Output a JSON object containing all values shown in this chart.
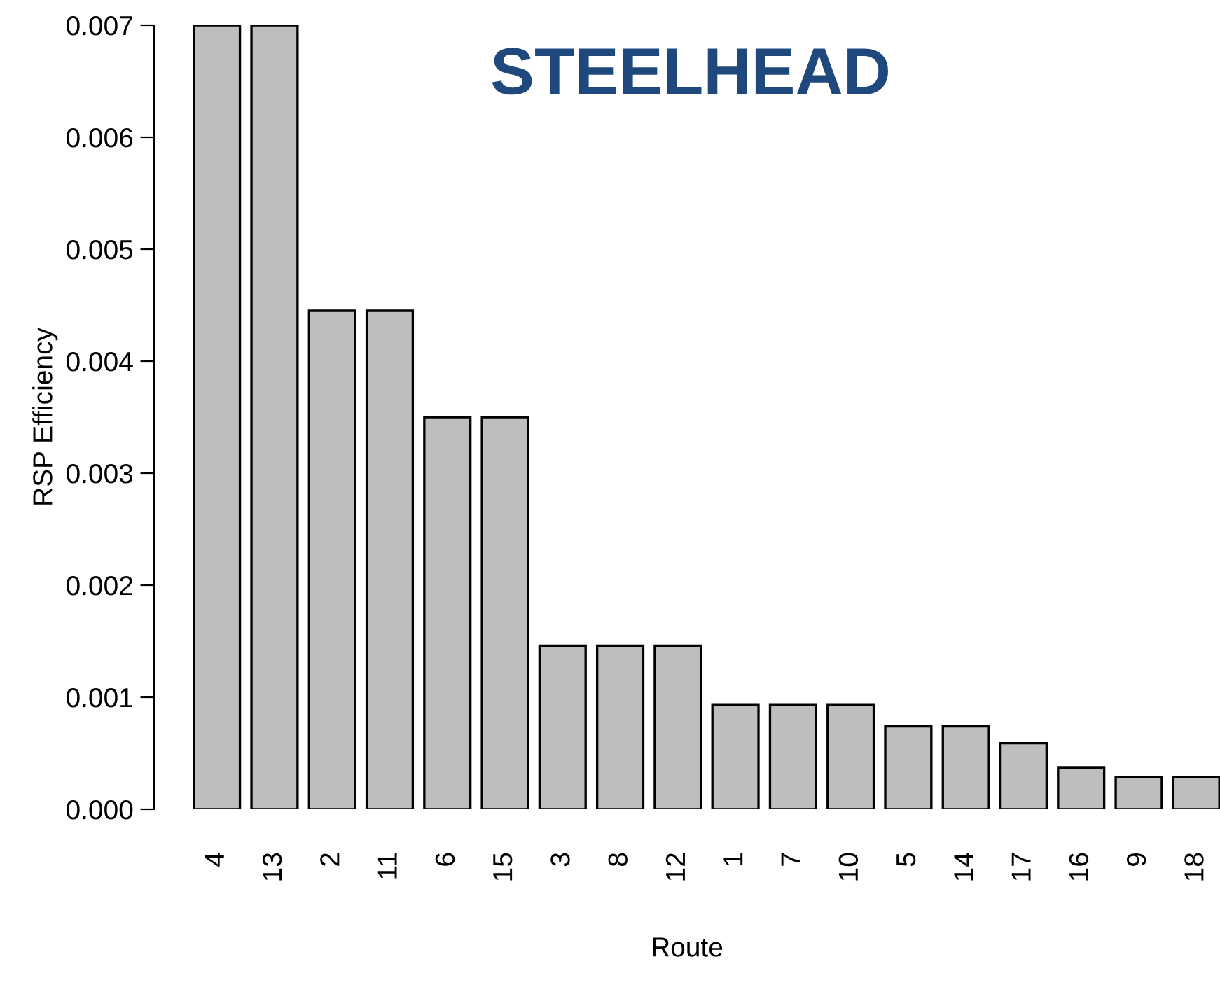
{
  "chart_data": {
    "type": "bar",
    "title": "STEELHEAD",
    "xlabel": "Route",
    "ylabel": "RSP Efficiency",
    "categories": [
      "4",
      "13",
      "2",
      "11",
      "6",
      "15",
      "3",
      "8",
      "12",
      "1",
      "7",
      "10",
      "5",
      "14",
      "17",
      "16",
      "9",
      "18"
    ],
    "values": [
      0.007,
      0.007,
      0.00445,
      0.00445,
      0.0035,
      0.0035,
      0.00146,
      0.00146,
      0.00146,
      0.00093,
      0.00093,
      0.00093,
      0.00074,
      0.00074,
      0.00059,
      0.00037,
      0.00029,
      0.00029
    ],
    "color": "#bebebe",
    "ylim": [
      0,
      0.007
    ],
    "yticks": [
      {
        "value": 0,
        "label": "0.000"
      },
      {
        "value": 0.001,
        "label": "0.001"
      },
      {
        "value": 0.002,
        "label": "0.002"
      },
      {
        "value": 0.003,
        "label": "0.003"
      },
      {
        "value": 0.004,
        "label": "0.004"
      },
      {
        "value": 0.005,
        "label": "0.005"
      },
      {
        "value": 0.006,
        "label": "0.006"
      },
      {
        "value": 0.007,
        "label": "0.007"
      }
    ],
    "grid": false,
    "legend": false
  }
}
